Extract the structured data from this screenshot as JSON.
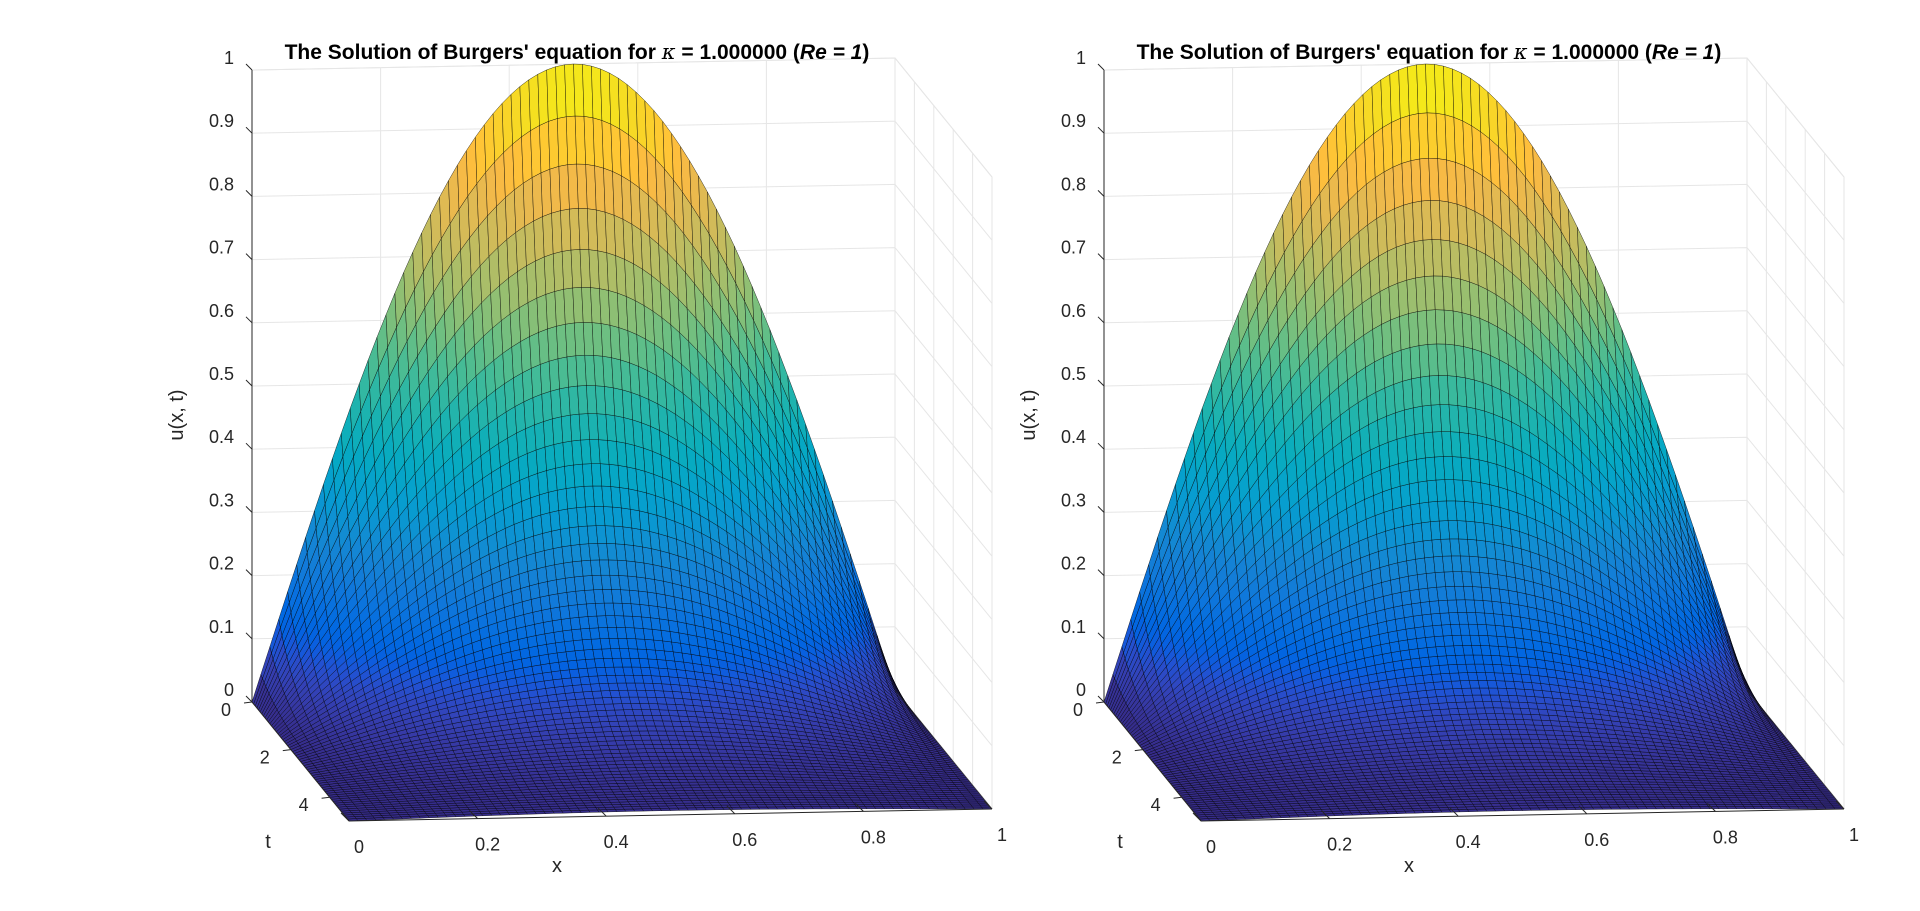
{
  "figure": {
    "background": "#ffffff"
  },
  "chart_data": [
    {
      "type": "surface",
      "title_prefix": "The Solution of Burgers' equation for ",
      "title_symbol": "κ",
      "title_value": " = 1.000000 (",
      "title_re": "Re = 1",
      "title_suffix": ")",
      "xlabel": "x",
      "ylabel": "t",
      "zlabel": "u(x, t)",
      "xlim": [
        0,
        1
      ],
      "tlim": [
        0,
        5
      ],
      "zlim": [
        0,
        1
      ],
      "xticks": [
        "0",
        "0.2",
        "0.4",
        "0.6",
        "0.8",
        "1"
      ],
      "tticks": [
        "0",
        "2",
        "4"
      ],
      "zticks": [
        "0",
        "0.1",
        "0.2",
        "0.3",
        "0.4",
        "0.5",
        "0.6",
        "0.7",
        "0.8",
        "0.9",
        "1"
      ],
      "grid": true,
      "colormap": "parula",
      "profile_peaks": [
        1.0,
        0.61,
        0.37,
        0.225,
        0.135,
        0.082,
        0.05,
        0.03,
        0.018,
        0.011,
        0.007
      ],
      "profile_times": [
        0,
        0.5,
        1.0,
        1.5,
        2.0,
        2.5,
        3.0,
        3.5,
        4.0,
        4.5,
        5.0
      ]
    },
    {
      "type": "surface",
      "title_prefix": "The Solution of Burgers' equation for ",
      "title_symbol": "κ",
      "title_value": " = 1.000000 (",
      "title_re": "Re = 1",
      "title_suffix": ")",
      "xlabel": "x",
      "ylabel": "t",
      "zlabel": "u(x, t)",
      "xlim": [
        0,
        1
      ],
      "tlim": [
        0,
        5
      ],
      "zlim": [
        0,
        1
      ],
      "xticks": [
        "0",
        "0.2",
        "0.4",
        "0.6",
        "0.8",
        "1"
      ],
      "tticks": [
        "0",
        "2",
        "4"
      ],
      "zticks": [
        "0",
        "0.1",
        "0.2",
        "0.3",
        "0.4",
        "0.5",
        "0.6",
        "0.7",
        "0.8",
        "0.9",
        "1"
      ],
      "grid": true,
      "colormap": "parula",
      "profile_peaks": [
        1.0,
        0.63,
        0.38,
        0.23,
        0.14,
        0.085,
        0.052,
        0.031,
        0.019,
        0.012,
        0.007
      ],
      "profile_times": [
        0,
        0.5,
        1.0,
        1.5,
        2.0,
        2.5,
        3.0,
        3.5,
        4.0,
        4.5,
        5.0
      ]
    }
  ]
}
